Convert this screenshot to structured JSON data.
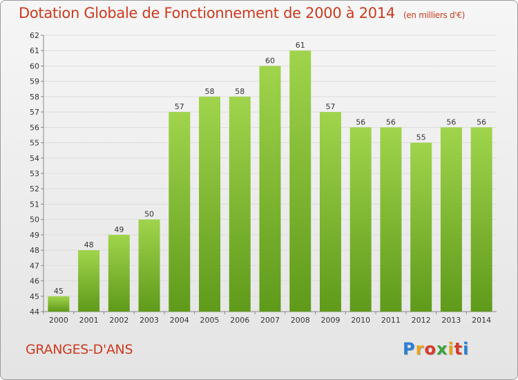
{
  "header": {
    "title": "Dotation Globale de Fonctionnement de 2000 à 2014",
    "unit": "(en milliers d'€)"
  },
  "footer": {
    "commune": "GRANGES-D'ANS",
    "logo_text": "Proxiti"
  },
  "colors": {
    "title": "#cc3a1e",
    "bar_top": "#a0d44c",
    "bar_bottom": "#5f9a1a",
    "grid": "#dcdcdc"
  },
  "chart_data": {
    "type": "bar",
    "categories": [
      "2000",
      "2001",
      "2002",
      "2003",
      "2004",
      "2005",
      "2006",
      "2007",
      "2008",
      "2009",
      "2010",
      "2011",
      "2012",
      "2013",
      "2014"
    ],
    "values": [
      45,
      48,
      49,
      50,
      57,
      58,
      58,
      60,
      61,
      57,
      56,
      56,
      55,
      56,
      56
    ],
    "title": "Dotation Globale de Fonctionnement de 2000 à 2014",
    "subtitle": "(en milliers d'€)",
    "xlabel": "",
    "ylabel": "",
    "ylim": [
      44,
      62
    ],
    "yticks": [
      44,
      45,
      46,
      47,
      48,
      49,
      50,
      51,
      52,
      53,
      54,
      55,
      56,
      57,
      58,
      59,
      60,
      61,
      62
    ],
    "grid": true,
    "legend": "none"
  }
}
